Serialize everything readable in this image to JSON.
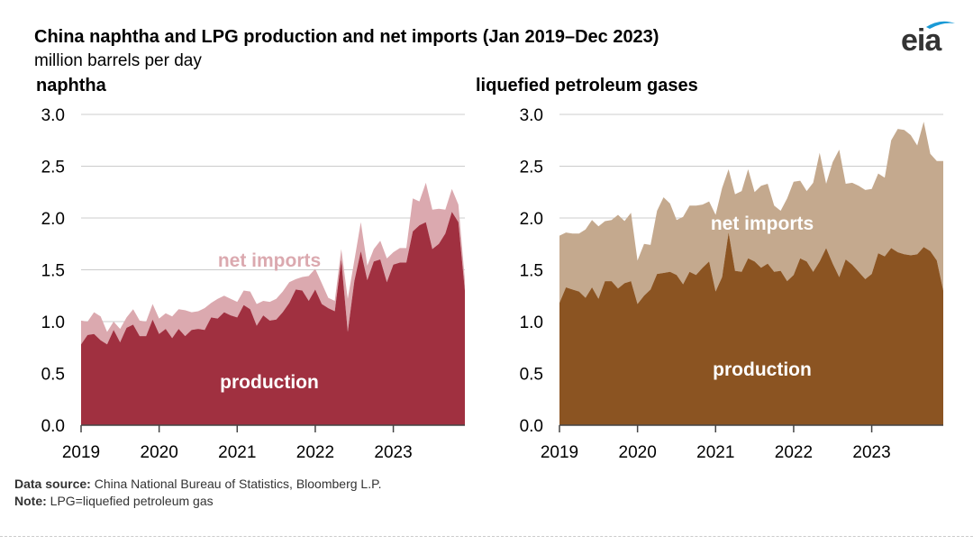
{
  "header": {
    "title": "China naphtha and LPG production and net imports (Jan 2019–Dec 2023)",
    "units": "million barrels per day",
    "logo_text": "eia"
  },
  "footer": {
    "source_label": "Data source:",
    "source_text": " China National Bureau of Statistics, Bloomberg L.P.",
    "note_label": "Note:",
    "note_text": " LPG=liquefied petroleum gas"
  },
  "colors": {
    "naphtha_production": "#a03040",
    "naphtha_imports": "#dba9af",
    "lpg_production": "#8b5422",
    "lpg_imports": "#c4a98e",
    "grid": "#cccccc",
    "axis": "#444444"
  },
  "chart_data": [
    {
      "type": "area",
      "title": "naphtha",
      "stacked": true,
      "x_start": "Jan 2019",
      "x_ticks": [
        "2019",
        "2020",
        "2021",
        "2022",
        "2023"
      ],
      "y_ticks": [
        "0.0",
        "0.5",
        "1.0",
        "1.5",
        "2.0",
        "2.5",
        "3.0"
      ],
      "ylim": [
        0,
        3
      ],
      "series": [
        {
          "name": "production",
          "values": [
            0.78,
            0.87,
            0.88,
            0.82,
            0.78,
            0.92,
            0.8,
            0.94,
            0.97,
            0.86,
            0.86,
            1.02,
            0.88,
            0.93,
            0.84,
            0.93,
            0.86,
            0.92,
            0.93,
            0.92,
            1.04,
            1.03,
            1.09,
            1.06,
            1.04,
            1.16,
            1.12,
            0.96,
            1.06,
            1.01,
            1.02,
            1.09,
            1.18,
            1.31,
            1.3,
            1.2,
            1.31,
            1.17,
            1.13,
            1.1,
            1.6,
            0.9,
            1.39,
            1.68,
            1.4,
            1.58,
            1.6,
            1.38,
            1.55,
            1.57,
            1.57,
            1.87,
            1.93,
            1.96,
            1.7,
            1.75,
            1.85,
            2.06,
            1.96,
            1.3
          ]
        },
        {
          "name": "net imports",
          "values": [
            0.23,
            0.13,
            0.21,
            0.23,
            0.12,
            0.08,
            0.13,
            0.1,
            0.15,
            0.15,
            0.14,
            0.15,
            0.15,
            0.15,
            0.21,
            0.19,
            0.25,
            0.17,
            0.17,
            0.21,
            0.14,
            0.19,
            0.16,
            0.16,
            0.15,
            0.14,
            0.17,
            0.21,
            0.14,
            0.18,
            0.2,
            0.2,
            0.2,
            0.1,
            0.13,
            0.24,
            0.2,
            0.2,
            0.1,
            0.1,
            0.1,
            0.32,
            0.2,
            0.28,
            0.14,
            0.12,
            0.18,
            0.23,
            0.12,
            0.14,
            0.14,
            0.32,
            0.23,
            0.38,
            0.38,
            0.34,
            0.23,
            0.22,
            0.17,
            0.1
          ]
        }
      ],
      "labels": {
        "production": "production",
        "imports": "net imports"
      }
    },
    {
      "type": "area",
      "title": "liquefied petroleum gases",
      "stacked": true,
      "x_start": "Jan 2019",
      "x_ticks": [
        "2019",
        "2020",
        "2021",
        "2022",
        "2023"
      ],
      "y_ticks": [
        "0.0",
        "0.5",
        "1.0",
        "1.5",
        "2.0",
        "2.5",
        "3.0"
      ],
      "ylim": [
        0,
        3
      ],
      "series": [
        {
          "name": "production",
          "values": [
            1.18,
            1.33,
            1.31,
            1.29,
            1.23,
            1.33,
            1.22,
            1.39,
            1.39,
            1.32,
            1.37,
            1.39,
            1.17,
            1.25,
            1.31,
            1.46,
            1.47,
            1.48,
            1.45,
            1.36,
            1.48,
            1.45,
            1.52,
            1.58,
            1.29,
            1.43,
            1.86,
            1.49,
            1.48,
            1.61,
            1.58,
            1.52,
            1.56,
            1.48,
            1.49,
            1.39,
            1.45,
            1.61,
            1.58,
            1.48,
            1.58,
            1.71,
            1.56,
            1.43,
            1.6,
            1.55,
            1.48,
            1.41,
            1.46,
            1.66,
            1.63,
            1.71,
            1.67,
            1.65,
            1.64,
            1.65,
            1.72,
            1.68,
            1.59,
            1.3
          ]
        },
        {
          "name": "net imports",
          "values": [
            0.65,
            0.53,
            0.54,
            0.56,
            0.66,
            0.65,
            0.7,
            0.58,
            0.59,
            0.71,
            0.6,
            0.66,
            0.42,
            0.5,
            0.43,
            0.61,
            0.73,
            0.66,
            0.53,
            0.65,
            0.64,
            0.67,
            0.61,
            0.58,
            0.74,
            0.86,
            0.61,
            0.74,
            0.78,
            0.86,
            0.67,
            0.79,
            0.77,
            0.64,
            0.58,
            0.8,
            0.9,
            0.75,
            0.68,
            0.86,
            1.05,
            0.62,
            0.98,
            1.23,
            0.73,
            0.79,
            0.83,
            0.86,
            0.82,
            0.77,
            0.76,
            1.04,
            1.19,
            1.2,
            1.16,
            1.05,
            1.21,
            0.94,
            0.96,
            1.25
          ]
        }
      ],
      "labels": {
        "production": "production",
        "imports": "net imports"
      }
    }
  ]
}
